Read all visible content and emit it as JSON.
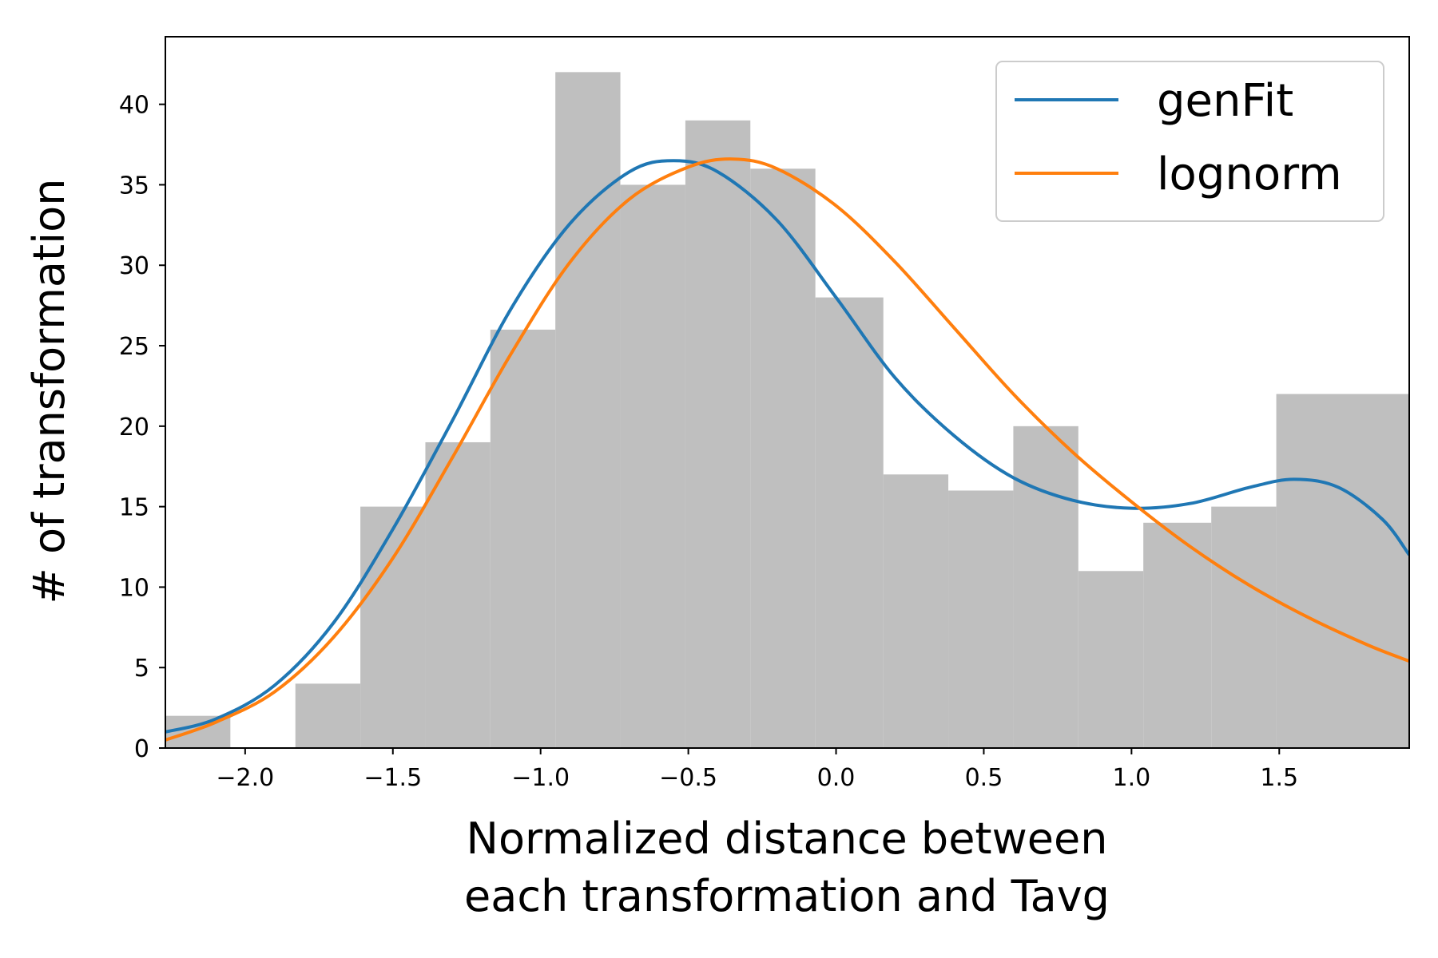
{
  "chart_data": {
    "type": "bar",
    "xlabel_lines": [
      "Normalized distance between",
      "each transformation and Tavg"
    ],
    "ylabel": "# of transformation",
    "xlim": [
      -2.27,
      1.94
    ],
    "ylim": [
      0,
      44.2
    ],
    "x_ticks": [
      -2.0,
      -1.5,
      -1.0,
      -0.5,
      0.0,
      0.5,
      1.0,
      1.5
    ],
    "x_tick_labels": [
      "−2.0",
      "−1.5",
      "−1.0",
      "−0.5",
      "0.0",
      "0.5",
      "1.0",
      "1.5"
    ],
    "y_ticks": [
      0,
      5,
      10,
      15,
      20,
      25,
      30,
      35,
      40
    ],
    "y_tick_labels": [
      "0",
      "5",
      "10",
      "15",
      "20",
      "25",
      "30",
      "35",
      "40"
    ],
    "histogram": {
      "color": "#bfbfbf",
      "bin_edges": [
        -2.27,
        -2.05,
        -1.83,
        -1.61,
        -1.39,
        -1.17,
        -0.95,
        -0.73,
        -0.51,
        -0.29,
        -0.07,
        0.16,
        0.38,
        0.6,
        0.82,
        1.04,
        1.27,
        1.49,
        1.94
      ],
      "counts": [
        2,
        0,
        4,
        15,
        19,
        26,
        42,
        35,
        39,
        36,
        28,
        17,
        16,
        20,
        11,
        14,
        15,
        22
      ]
    },
    "series": [
      {
        "name": "genFit",
        "color": "#1f77b4",
        "x": [
          -2.27,
          -2.1,
          -1.9,
          -1.7,
          -1.5,
          -1.3,
          -1.1,
          -0.9,
          -0.7,
          -0.55,
          -0.4,
          -0.2,
          0.0,
          0.2,
          0.4,
          0.6,
          0.8,
          1.0,
          1.2,
          1.4,
          1.55,
          1.7,
          1.85,
          1.94
        ],
        "y": [
          1.0,
          1.8,
          3.9,
          7.8,
          13.6,
          20.3,
          27.3,
          32.6,
          35.8,
          36.5,
          35.8,
          32.8,
          28.0,
          23.0,
          19.4,
          16.8,
          15.4,
          14.9,
          15.2,
          16.2,
          16.7,
          16.2,
          14.2,
          12.0
        ]
      },
      {
        "name": "lognorm",
        "color": "#ff7f0e",
        "x": [
          -2.27,
          -2.1,
          -1.9,
          -1.7,
          -1.5,
          -1.3,
          -1.1,
          -0.9,
          -0.7,
          -0.5,
          -0.35,
          -0.2,
          0.0,
          0.2,
          0.4,
          0.6,
          0.8,
          1.0,
          1.2,
          1.4,
          1.6,
          1.8,
          1.94
        ],
        "y": [
          0.5,
          1.6,
          3.5,
          6.9,
          11.8,
          18.0,
          24.5,
          30.2,
          34.1,
          36.1,
          36.6,
          36.0,
          33.7,
          30.2,
          26.1,
          22.0,
          18.4,
          15.3,
          12.5,
          10.1,
          8.1,
          6.4,
          5.4
        ]
      }
    ],
    "legend": {
      "position": "top-right",
      "entries": [
        "genFit",
        "lognorm"
      ]
    }
  }
}
